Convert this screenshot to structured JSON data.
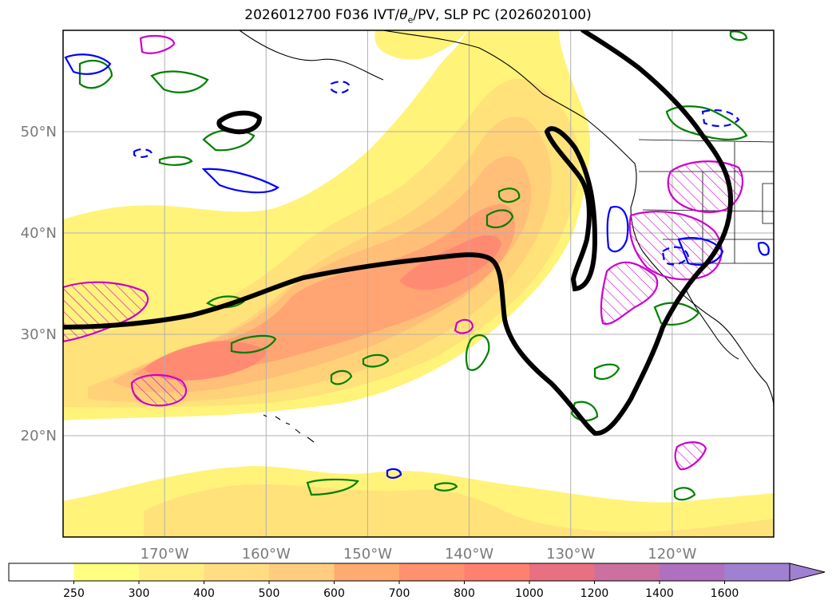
{
  "title": "2026012700 F036 IVT/θe/PV, SLP PC (2026020100)",
  "title_plain": "2026012700 F036 IVT/",
  "title_theta": "θ",
  "title_sub": "e",
  "title_rest": "/PV, SLP PC (2026020100)",
  "chart_data": {
    "type": "heatmap",
    "map_projection": "PlateCarree",
    "lon_range": [
      -180,
      -110
    ],
    "lat_range": [
      10,
      60
    ],
    "grid": true,
    "lon_ticks": [
      -170,
      -160,
      -150,
      -140,
      -130,
      -120
    ],
    "lon_tick_labels": [
      "170°W",
      "160°W",
      "150°W",
      "140°W",
      "130°W",
      "120°W"
    ],
    "lat_ticks": [
      20,
      30,
      40,
      50
    ],
    "lat_tick_labels": [
      "20°N",
      "30°N",
      "40°N",
      "50°N"
    ],
    "colorbar": {
      "levels": [
        250,
        300,
        400,
        500,
        600,
        700,
        800,
        1000,
        1200,
        1400,
        1600
      ],
      "tick_labels": [
        "250",
        "300",
        "400",
        "500",
        "600",
        "700",
        "800",
        "1000",
        "1200",
        "1400",
        "1600"
      ],
      "colors": [
        "#ffffff",
        "#ffff80",
        "#ffee80",
        "#ffdd80",
        "#ffcc80",
        "#ffaa70",
        "#ff9070",
        "#ff8070",
        "#e87080",
        "#cc70a0",
        "#b070c0",
        "#a080d0"
      ],
      "extend": "max"
    },
    "ivt_color_ramp": {
      "250": "#fff37a",
      "300": "#ffe27a",
      "400": "#ffd27a",
      "500": "#ffbf78",
      "600": "#ffa472",
      "800": "#ff8a72"
    },
    "contour_colors": {
      "slp_pc": "#000000",
      "pv_high": "#cc00cc",
      "theta_e_plus": "#008000",
      "theta_e_minus": "#0000ff"
    }
  }
}
